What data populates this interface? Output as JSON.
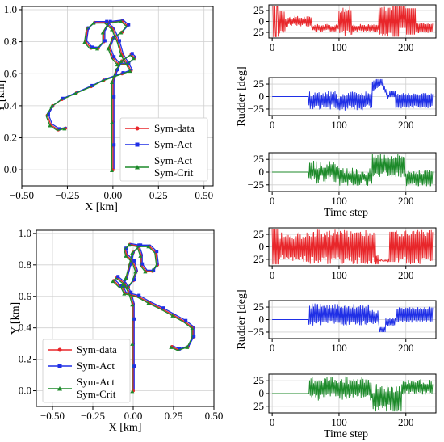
{
  "chart_data": [
    {
      "type": "line",
      "name": "trajectory-top",
      "xlabel": "X [km]",
      "ylabel": "Y [km]",
      "xlim": [
        -0.5,
        0.55
      ],
      "ylim": [
        -0.1,
        1.02
      ],
      "xticks": [
        "−0.50",
        "−0.25",
        "0.00",
        "0.25",
        "0.50"
      ],
      "xtick_values": [
        -0.5,
        -0.25,
        0,
        0.25,
        0.5
      ],
      "yticks": [
        "0.0",
        "0.2",
        "0.4",
        "0.6",
        "0.8",
        "1.0"
      ],
      "ytick_values": [
        0,
        0.2,
        0.4,
        0.6,
        0.8,
        1.0
      ],
      "grid": true,
      "legend": {
        "placement": "bottom-right",
        "entries": [
          "Sym-data",
          "Sym-Act",
          "Sym-Act",
          "Sym-Crit"
        ]
      },
      "series": [
        {
          "name": "Sym-data",
          "color": "#e8262a",
          "marker": "circle"
        },
        {
          "name": "Sym-Act",
          "color": "#1f2fe6",
          "marker": "square"
        },
        {
          "name": "Sym-Act Sym-Crit",
          "color": "#1d8a2a",
          "marker": "triangle"
        }
      ],
      "path": [
        [
          0.0,
          0.0
        ],
        [
          0.0,
          0.15
        ],
        [
          0.0,
          0.3
        ],
        [
          0.0,
          0.45
        ],
        [
          0.0,
          0.55
        ],
        [
          0.02,
          0.62
        ],
        [
          0.05,
          0.68
        ],
        [
          0.1,
          0.72
        ],
        [
          0.12,
          0.7
        ],
        [
          0.08,
          0.66
        ],
        [
          0.03,
          0.66
        ],
        [
          0.0,
          0.7
        ],
        [
          -0.02,
          0.76
        ],
        [
          0.0,
          0.82
        ],
        [
          0.05,
          0.86
        ],
        [
          0.08,
          0.9
        ],
        [
          0.05,
          0.93
        ],
        [
          -0.02,
          0.92
        ],
        [
          -0.05,
          0.86
        ],
        [
          -0.05,
          0.8
        ],
        [
          -0.08,
          0.76
        ],
        [
          -0.12,
          0.76
        ],
        [
          -0.15,
          0.8
        ],
        [
          -0.14,
          0.88
        ],
        [
          -0.1,
          0.92
        ],
        [
          -0.04,
          0.92
        ],
        [
          0.0,
          0.88
        ],
        [
          0.03,
          0.8
        ],
        [
          0.05,
          0.72
        ],
        [
          0.08,
          0.66
        ],
        [
          0.1,
          0.62
        ],
        [
          0.05,
          0.6
        ],
        [
          -0.05,
          0.56
        ],
        [
          -0.12,
          0.52
        ],
        [
          -0.2,
          0.48
        ],
        [
          -0.28,
          0.44
        ],
        [
          -0.33,
          0.4
        ],
        [
          -0.36,
          0.34
        ],
        [
          -0.34,
          0.28
        ],
        [
          -0.3,
          0.25
        ],
        [
          -0.26,
          0.26
        ]
      ]
    },
    {
      "type": "line",
      "name": "trajectory-bottom",
      "xlabel": "X [km]",
      "ylabel": "Y [km]",
      "xlim": [
        -0.6,
        0.5
      ],
      "ylim": [
        -0.1,
        1.02
      ],
      "xticks": [
        "−0.50",
        "−0.25",
        "0.00",
        "0.25",
        "0.50"
      ],
      "xtick_values": [
        -0.5,
        -0.25,
        0,
        0.25,
        0.5
      ],
      "yticks": [
        "0.0",
        "0.2",
        "0.4",
        "0.6",
        "0.8",
        "1.0"
      ],
      "ytick_values": [
        0,
        0.2,
        0.4,
        0.6,
        0.8,
        1.0
      ],
      "grid": true,
      "legend": {
        "placement": "bottom-left",
        "entries": [
          "Sym-data",
          "Sym-Act",
          "Sym-Act",
          "Sym-Crit"
        ]
      },
      "series": [
        {
          "name": "Sym-data",
          "color": "#e8262a",
          "marker": "circle"
        },
        {
          "name": "Sym-Act",
          "color": "#1f2fe6",
          "marker": "square"
        },
        {
          "name": "Sym-Act Sym-Crit",
          "color": "#1d8a2a",
          "marker": "triangle"
        }
      ],
      "path": [
        [
          0.0,
          0.0
        ],
        [
          0.0,
          0.15
        ],
        [
          0.0,
          0.3
        ],
        [
          0.0,
          0.45
        ],
        [
          0.0,
          0.55
        ],
        [
          -0.02,
          0.62
        ],
        [
          -0.05,
          0.68
        ],
        [
          -0.1,
          0.72
        ],
        [
          -0.12,
          0.7
        ],
        [
          -0.08,
          0.66
        ],
        [
          -0.03,
          0.66
        ],
        [
          0.0,
          0.7
        ],
        [
          0.02,
          0.76
        ],
        [
          0.0,
          0.82
        ],
        [
          -0.04,
          0.86
        ],
        [
          -0.05,
          0.9
        ],
        [
          -0.02,
          0.93
        ],
        [
          0.03,
          0.92
        ],
        [
          0.05,
          0.86
        ],
        [
          0.05,
          0.8
        ],
        [
          0.08,
          0.76
        ],
        [
          0.12,
          0.76
        ],
        [
          0.15,
          0.8
        ],
        [
          0.14,
          0.88
        ],
        [
          0.1,
          0.92
        ],
        [
          0.04,
          0.92
        ],
        [
          0.0,
          0.88
        ],
        [
          -0.02,
          0.8
        ],
        [
          -0.04,
          0.72
        ],
        [
          -0.07,
          0.66
        ],
        [
          -0.05,
          0.62
        ],
        [
          0.03,
          0.6
        ],
        [
          0.1,
          0.56
        ],
        [
          0.18,
          0.52
        ],
        [
          0.25,
          0.48
        ],
        [
          0.32,
          0.44
        ],
        [
          0.37,
          0.4
        ],
        [
          0.37,
          0.34
        ],
        [
          0.34,
          0.28
        ],
        [
          0.28,
          0.26
        ],
        [
          0.24,
          0.28
        ]
      ]
    }
  ],
  "rudder": {
    "ylabel": "Rudder [deg]",
    "xlabel": "Time step",
    "xlim": [
      -5,
      245
    ],
    "ylim": [
      -38,
      38
    ],
    "xticks": [
      "0",
      "100",
      "200"
    ],
    "xtick_values": [
      0,
      100,
      200
    ],
    "yticks": [
      "−25",
      "0",
      "25"
    ],
    "ytick_values": [
      -25,
      0,
      25
    ],
    "panels": [
      {
        "color": "#e8262a",
        "pattern": "data-top",
        "show_xlabel": false
      },
      {
        "color": "#1f2fe6",
        "pattern": "act-top",
        "show_xlabel": false
      },
      {
        "color": "#1d8a2a",
        "pattern": "crit-top",
        "show_xlabel": true
      },
      {
        "color": "#e8262a",
        "pattern": "data-bottom",
        "show_xlabel": false
      },
      {
        "color": "#1f2fe6",
        "pattern": "act-bottom",
        "show_xlabel": false
      },
      {
        "color": "#1d8a2a",
        "pattern": "crit-bottom",
        "show_xlabel": true
      }
    ]
  }
}
